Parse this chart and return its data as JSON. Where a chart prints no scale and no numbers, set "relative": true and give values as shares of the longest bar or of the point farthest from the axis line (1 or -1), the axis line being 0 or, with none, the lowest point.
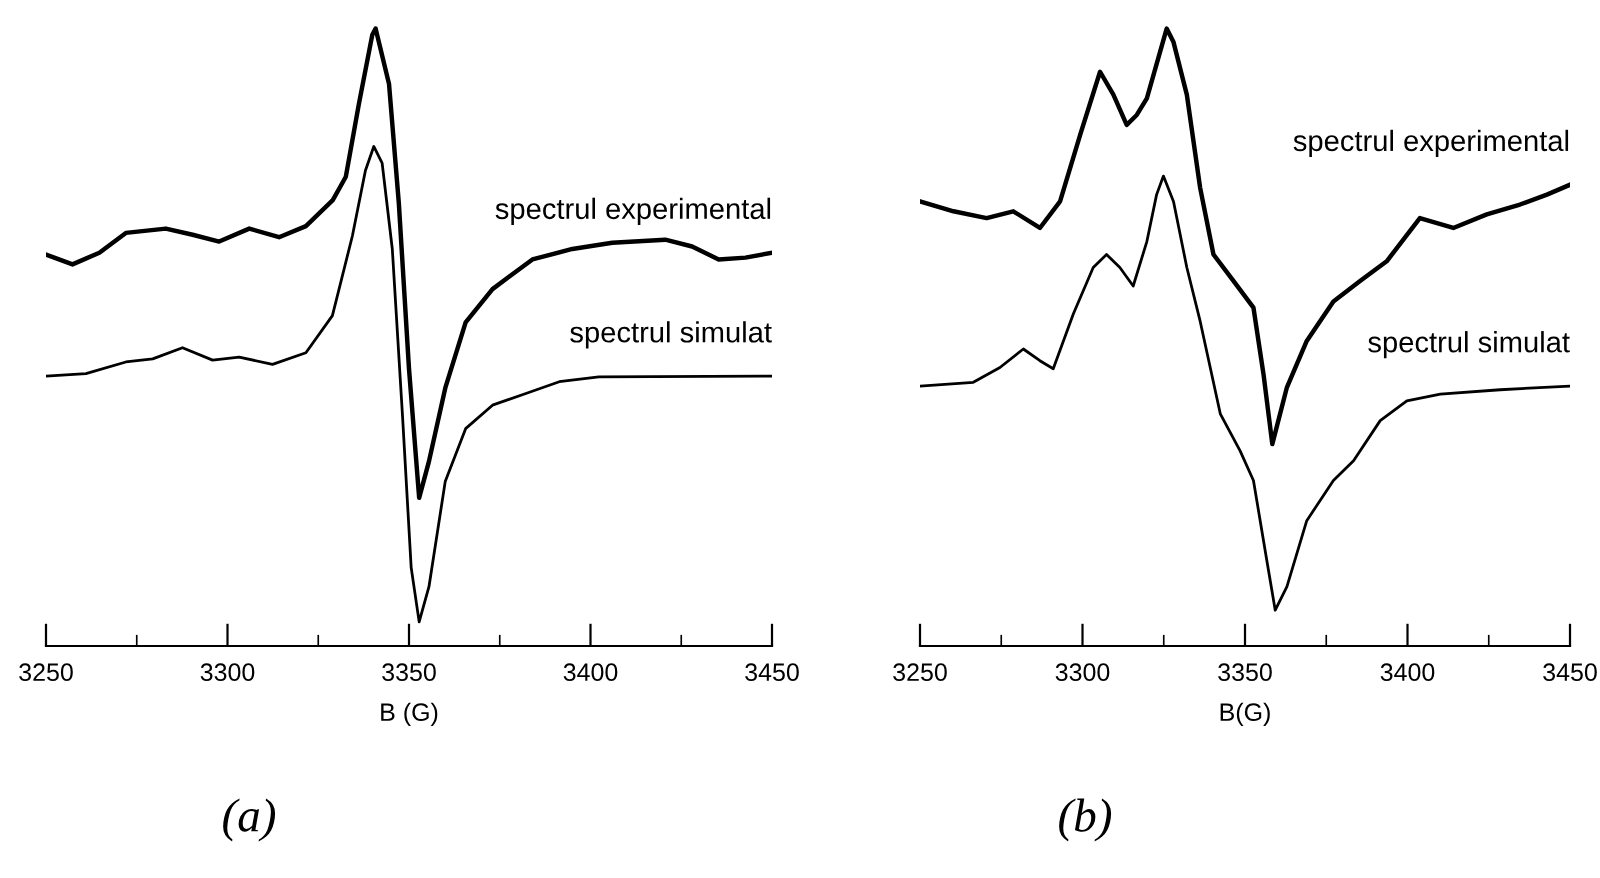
{
  "chart_data": [
    {
      "type": "line",
      "relative": true,
      "xlabel": "B (G)",
      "annotations": [
        "(a)"
      ],
      "legend": false,
      "grid": false,
      "tick_labels": "x",
      "xlim": [
        3250,
        3450
      ],
      "xticks": [
        3250,
        {
          "value": 3275,
          "label": null
        },
        3300,
        {
          "value": 3325,
          "label": null
        },
        3350,
        {
          "value": 3375,
          "label": null
        },
        3400,
        {
          "value": 3425,
          "label": null
        },
        3450
      ],
      "series": [
        {
          "name": "spectrul experimental",
          "color": "#000000",
          "x": [
            3250,
            3257.3,
            3264.7,
            3272,
            3283,
            3290.4,
            3297.7,
            3306,
            3314.2,
            3321.6,
            3329,
            3332.6,
            3336.2,
            3339.9,
            3340.8,
            3344.5,
            3347.2,
            3350,
            3352.8,
            3355.5,
            3360,
            3365.6,
            3373,
            3384,
            3395,
            3406,
            3420.6,
            3428,
            3435.3,
            3442.7,
            3450
          ],
          "values": [
            0.634,
            0.618,
            0.637,
            0.669,
            0.676,
            0.666,
            0.655,
            0.676,
            0.662,
            0.68,
            0.722,
            0.76,
            0.878,
            0.99,
            1.0,
            0.91,
            0.717,
            0.449,
            0.24,
            0.299,
            0.418,
            0.524,
            0.578,
            0.626,
            0.643,
            0.653,
            0.658,
            0.647,
            0.626,
            0.629,
            0.637
          ]
        },
        {
          "name": "spectrul simulat",
          "color": "#000000",
          "x": [
            3250,
            3261,
            3272,
            3279.4,
            3287.6,
            3295.9,
            3303.2,
            3312.4,
            3321.6,
            3328.9,
            3334.4,
            3338,
            3340.3,
            3342.6,
            3345.4,
            3348.2,
            3350.6,
            3352.8,
            3355.5,
            3360,
            3365.6,
            3373,
            3382.2,
            3391.4,
            3402.3,
            3450
          ],
          "values": [
            0.437,
            0.441,
            0.46,
            0.465,
            0.483,
            0.463,
            0.468,
            0.456,
            0.475,
            0.535,
            0.664,
            0.77,
            0.809,
            0.782,
            0.643,
            0.374,
            0.127,
            0.039,
            0.096,
            0.267,
            0.352,
            0.39,
            0.409,
            0.428,
            0.436,
            0.437
          ]
        }
      ]
    },
    {
      "type": "line",
      "relative": true,
      "xlabel": "B(G)",
      "annotations": [
        "(b)"
      ],
      "legend": false,
      "grid": false,
      "tick_labels": "x",
      "xlim": [
        3250,
        3450
      ],
      "xticks": [
        3250,
        {
          "value": 3275,
          "label": null
        },
        3300,
        {
          "value": 3325,
          "label": null
        },
        3350,
        {
          "value": 3375,
          "label": null
        },
        3400,
        {
          "value": 3425,
          "label": null
        },
        3450
      ],
      "series": [
        {
          "name": "spectrul experimental",
          "color": "#000000",
          "x": [
            3250,
            3260.3,
            3270.5,
            3278.7,
            3286.9,
            3293.1,
            3299.3,
            3305.4,
            3309.5,
            3313.6,
            3316.7,
            3319.8,
            3325.9,
            3328,
            3332.1,
            3336.2,
            3340.3,
            3346.5,
            3352.6,
            3355.7,
            3358.4,
            3362.9,
            3369,
            3377.2,
            3385.4,
            3393.6,
            3403.8,
            3414.1,
            3424.4,
            3434.6,
            3442.9,
            3450
          ],
          "values": [
            0.72,
            0.704,
            0.693,
            0.704,
            0.677,
            0.72,
            0.828,
            0.93,
            0.893,
            0.844,
            0.86,
            0.887,
            1.0,
            0.978,
            0.893,
            0.742,
            0.634,
            0.591,
            0.548,
            0.44,
            0.327,
            0.419,
            0.494,
            0.558,
            0.591,
            0.623,
            0.693,
            0.677,
            0.699,
            0.715,
            0.731,
            0.747
          ]
        },
        {
          "name": "spectrul simulat",
          "color": "#000000",
          "x": [
            3250,
            3266.4,
            3274.6,
            3281.8,
            3286.9,
            3291,
            3297.2,
            3303.3,
            3307.4,
            3311.5,
            3315.6,
            3319.8,
            3322.8,
            3324.9,
            3328,
            3332.1,
            3336.2,
            3342.4,
            3348.5,
            3352.6,
            3356.7,
            3359.3,
            3362.9,
            3369,
            3377.2,
            3383.4,
            3391.6,
            3399.8,
            3410.1,
            3428.5,
            3450
          ],
          "values": [
            0.421,
            0.427,
            0.451,
            0.481,
            0.462,
            0.449,
            0.538,
            0.613,
            0.634,
            0.613,
            0.583,
            0.655,
            0.731,
            0.761,
            0.72,
            0.613,
            0.526,
            0.376,
            0.316,
            0.268,
            0.139,
            0.058,
            0.096,
            0.203,
            0.268,
            0.3,
            0.365,
            0.397,
            0.408,
            0.415,
            0.421
          ]
        }
      ]
    }
  ]
}
